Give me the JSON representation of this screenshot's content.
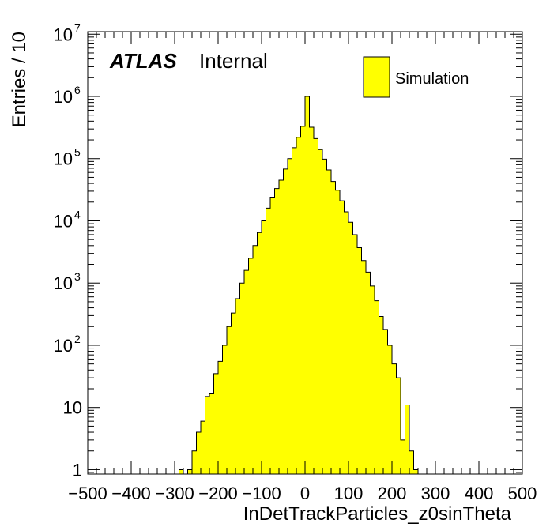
{
  "chart_data": {
    "type": "bar",
    "title": "",
    "xlabel": "InDetTrackParticles_z0sinTheta",
    "ylabel": "Entries / 10",
    "xlim": [
      -500,
      500
    ],
    "ylim": [
      0.85,
      11000000
    ],
    "log_y": true,
    "bin_width": 10,
    "x_ticks": [
      -500,
      -400,
      -300,
      -200,
      -100,
      0,
      100,
      200,
      300,
      400,
      500
    ],
    "x_tick_labels": [
      "−500",
      "−400",
      "−300",
      "−200",
      "−100",
      "0",
      "100",
      "200",
      "300",
      "400",
      "500"
    ],
    "y_ticks": [
      {
        "value": 1,
        "base": "1",
        "exp": ""
      },
      {
        "value": 10,
        "base": "10",
        "exp": ""
      },
      {
        "value": 100,
        "base": "10",
        "exp": "2"
      },
      {
        "value": 1000,
        "base": "10",
        "exp": "3"
      },
      {
        "value": 10000,
        "base": "10",
        "exp": "4"
      },
      {
        "value": 100000,
        "base": "10",
        "exp": "5"
      },
      {
        "value": 1000000,
        "base": "10",
        "exp": "6"
      },
      {
        "value": 10000000,
        "base": "10",
        "exp": "7"
      }
    ],
    "fill_color": "#ffff00",
    "line_color": "#000000",
    "bins": [
      {
        "x": -290,
        "y": 1
      },
      {
        "x": -270,
        "y": 1
      },
      {
        "x": -260,
        "y": 2
      },
      {
        "x": -250,
        "y": 4
      },
      {
        "x": -240,
        "y": 6
      },
      {
        "x": -230,
        "y": 15
      },
      {
        "x": -220,
        "y": 17
      },
      {
        "x": -210,
        "y": 35
      },
      {
        "x": -200,
        "y": 55
      },
      {
        "x": -190,
        "y": 100
      },
      {
        "x": -180,
        "y": 200
      },
      {
        "x": -170,
        "y": 330
      },
      {
        "x": -160,
        "y": 560
      },
      {
        "x": -150,
        "y": 1000
      },
      {
        "x": -140,
        "y": 1600
      },
      {
        "x": -130,
        "y": 2500
      },
      {
        "x": -120,
        "y": 4000
      },
      {
        "x": -110,
        "y": 6500
      },
      {
        "x": -100,
        "y": 10000
      },
      {
        "x": -90,
        "y": 16000
      },
      {
        "x": -80,
        "y": 24000
      },
      {
        "x": -70,
        "y": 33000
      },
      {
        "x": -60,
        "y": 45000
      },
      {
        "x": -50,
        "y": 68000
      },
      {
        "x": -40,
        "y": 100000
      },
      {
        "x": -30,
        "y": 150000
      },
      {
        "x": -20,
        "y": 220000
      },
      {
        "x": -10,
        "y": 330000
      },
      {
        "x": 0,
        "y": 1000000
      },
      {
        "x": 10,
        "y": 320000
      },
      {
        "x": 20,
        "y": 210000
      },
      {
        "x": 30,
        "y": 140000
      },
      {
        "x": 40,
        "y": 98000
      },
      {
        "x": 50,
        "y": 66000
      },
      {
        "x": 60,
        "y": 43000
      },
      {
        "x": 70,
        "y": 31000
      },
      {
        "x": 80,
        "y": 21000
      },
      {
        "x": 90,
        "y": 14000
      },
      {
        "x": 100,
        "y": 9500
      },
      {
        "x": 110,
        "y": 6000
      },
      {
        "x": 120,
        "y": 3700
      },
      {
        "x": 130,
        "y": 2300
      },
      {
        "x": 140,
        "y": 1500
      },
      {
        "x": 150,
        "y": 900
      },
      {
        "x": 160,
        "y": 520
      },
      {
        "x": 170,
        "y": 290
      },
      {
        "x": 180,
        "y": 180
      },
      {
        "x": 190,
        "y": 100
      },
      {
        "x": 200,
        "y": 50
      },
      {
        "x": 210,
        "y": 30
      },
      {
        "x": 220,
        "y": 3
      },
      {
        "x": 230,
        "y": 11
      },
      {
        "x": 240,
        "y": 2
      },
      {
        "x": 250,
        "y": 1
      }
    ],
    "legend": {
      "label": "Simulation",
      "position": "top-right"
    }
  },
  "labels": {
    "atlas": "ATLAS",
    "internal": "Internal"
  }
}
